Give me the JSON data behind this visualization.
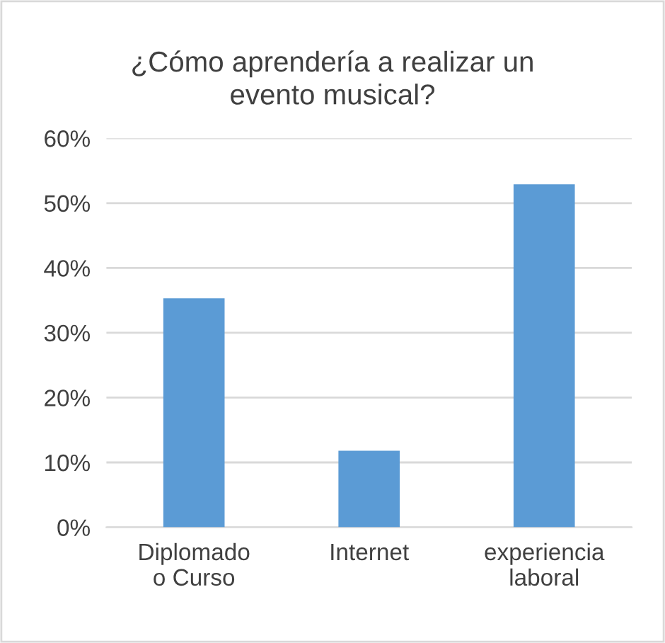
{
  "chart_data": {
    "type": "bar",
    "title": "¿Cómo aprendería a realizar un\nevento musical?",
    "categories": [
      "Diplomado\no Curso",
      "Internet",
      "experiencia\nlaboral"
    ],
    "values": [
      35.3,
      11.8,
      52.9
    ],
    "color": "#5b9bd5",
    "ylim": [
      0,
      60
    ],
    "yticks": [
      {
        "value": 0,
        "label": "0%"
      },
      {
        "value": 10,
        "label": "10%"
      },
      {
        "value": 20,
        "label": "20%"
      },
      {
        "value": 30,
        "label": "30%"
      },
      {
        "value": 40,
        "label": "40%"
      },
      {
        "value": 50,
        "label": "50%"
      },
      {
        "value": 60,
        "label": "60%"
      }
    ],
    "grid": "y"
  }
}
